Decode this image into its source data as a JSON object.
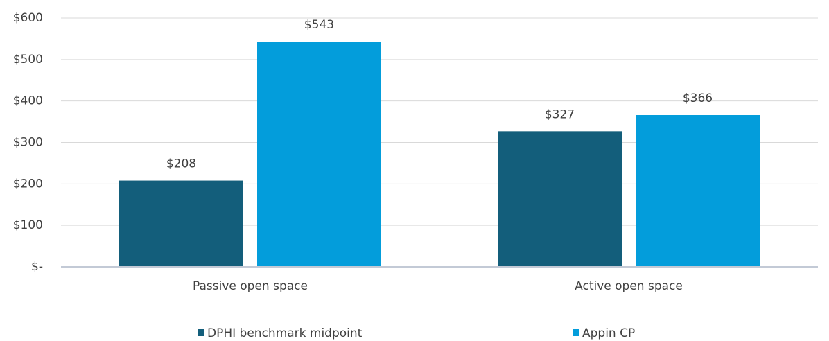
{
  "chart_data": {
    "type": "bar",
    "categories": [
      "Passive open space",
      "Active open space"
    ],
    "series": [
      {
        "name": "DPHI benchmark midpoint",
        "color": "#135e7b",
        "values": [
          208,
          327
        ],
        "value_labels": [
          "$208",
          "$327"
        ]
      },
      {
        "name": "Appin CP",
        "color": "#039ddb",
        "values": [
          543,
          366
        ],
        "value_labels": [
          "$543",
          "$366"
        ]
      }
    ],
    "ylim": [
      0,
      600
    ],
    "yticks": [
      {
        "value": 0,
        "label": "$-"
      },
      {
        "value": 100,
        "label": "$100"
      },
      {
        "value": 200,
        "label": "$200"
      },
      {
        "value": 300,
        "label": "$300"
      },
      {
        "value": 400,
        "label": "$400"
      },
      {
        "value": 500,
        "label": "$500"
      },
      {
        "value": 600,
        "label": "$600"
      }
    ],
    "grid": true,
    "legend": "bottom"
  }
}
